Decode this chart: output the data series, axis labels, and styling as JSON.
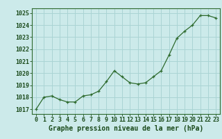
{
  "x": [
    0,
    1,
    2,
    3,
    4,
    5,
    6,
    7,
    8,
    9,
    10,
    11,
    12,
    13,
    14,
    15,
    16,
    17,
    18,
    19,
    20,
    21,
    22,
    23
  ],
  "y": [
    1017.0,
    1018.0,
    1018.1,
    1017.8,
    1017.6,
    1017.6,
    1018.1,
    1018.2,
    1018.5,
    1019.3,
    1020.2,
    1019.7,
    1019.2,
    1019.1,
    1019.2,
    1019.7,
    1020.2,
    1021.5,
    1022.9,
    1023.5,
    1024.0,
    1024.8,
    1024.8,
    1024.6
  ],
  "line_color": "#2d6a2d",
  "marker": "+",
  "bg_color": "#cceaea",
  "grid_color": "#aad4d4",
  "title": "Graphe pression niveau de la mer (hPa)",
  "ylim_min": 1016.6,
  "ylim_max": 1025.4,
  "xlim_min": -0.5,
  "xlim_max": 23.5,
  "yticks": [
    1017,
    1018,
    1019,
    1020,
    1021,
    1022,
    1023,
    1024,
    1025
  ],
  "xticks": [
    0,
    1,
    2,
    3,
    4,
    5,
    6,
    7,
    8,
    9,
    10,
    11,
    12,
    13,
    14,
    15,
    16,
    17,
    18,
    19,
    20,
    21,
    22,
    23
  ],
  "title_fontsize": 7.0,
  "tick_fontsize": 6.0,
  "title_color": "#1a4a1a",
  "tick_color": "#1a4a1a",
  "spine_color": "#2d6a2d"
}
